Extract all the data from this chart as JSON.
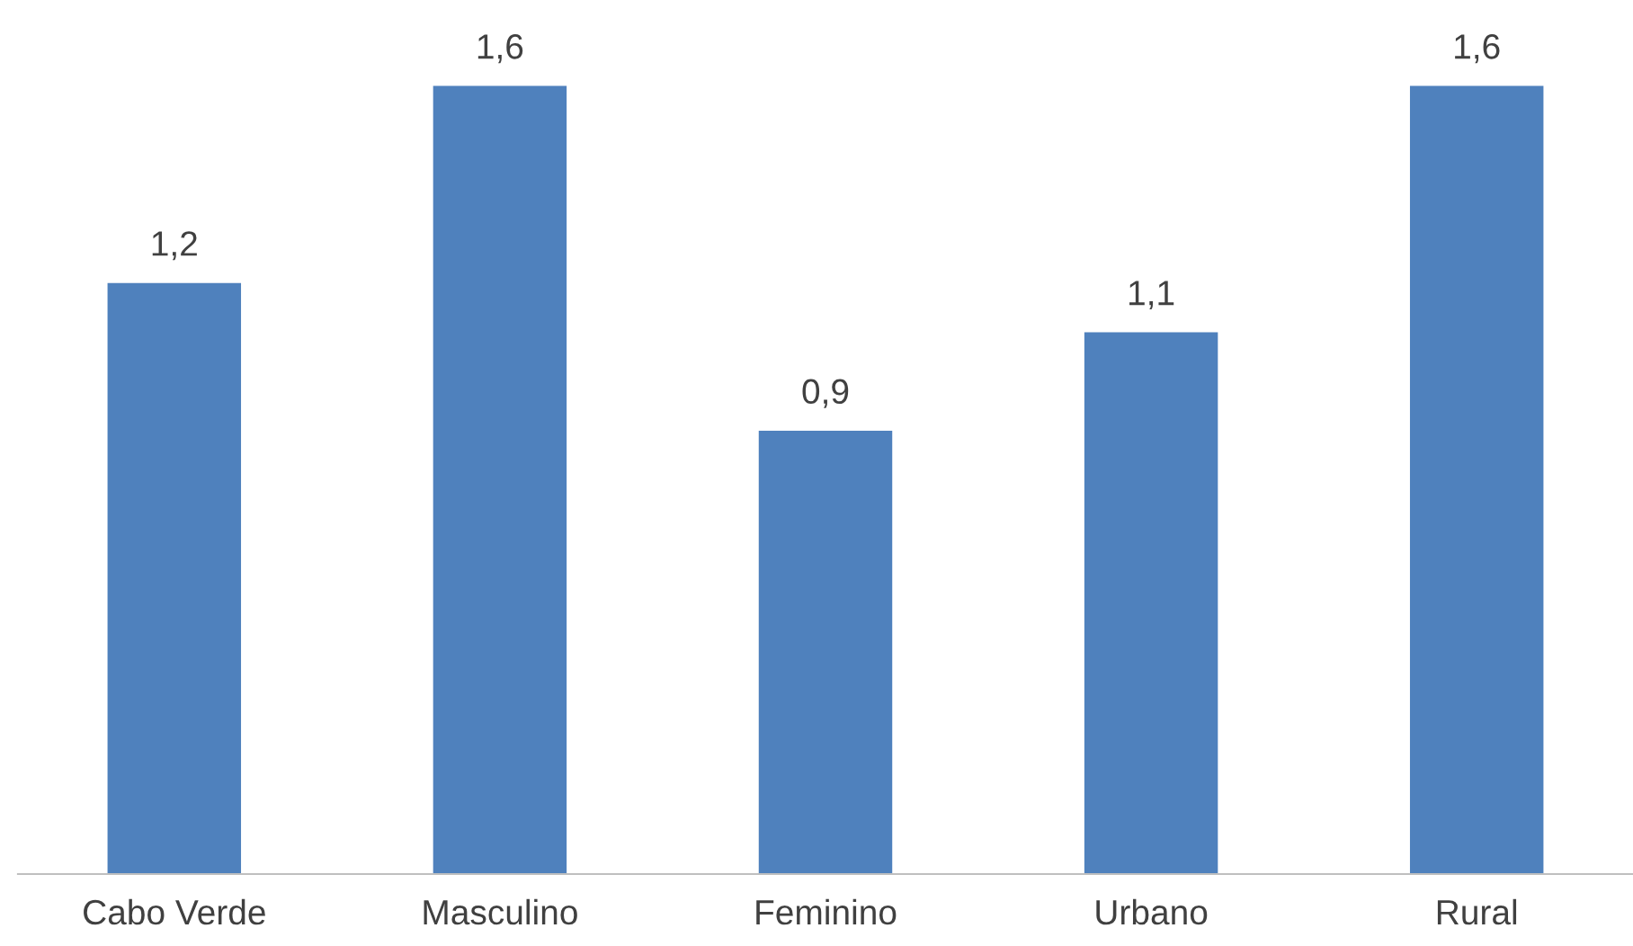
{
  "chart_data": {
    "type": "bar",
    "categories": [
      "Cabo Verde",
      "Masculino",
      "Feminino",
      "Urbano",
      "Rural"
    ],
    "values": [
      1.2,
      1.6,
      0.9,
      1.1,
      1.6
    ],
    "value_labels": [
      "1,2",
      "1,6",
      "0,9",
      "1,1",
      "1,6"
    ],
    "color": "#4f81bd",
    "grid": false,
    "legend": false
  }
}
